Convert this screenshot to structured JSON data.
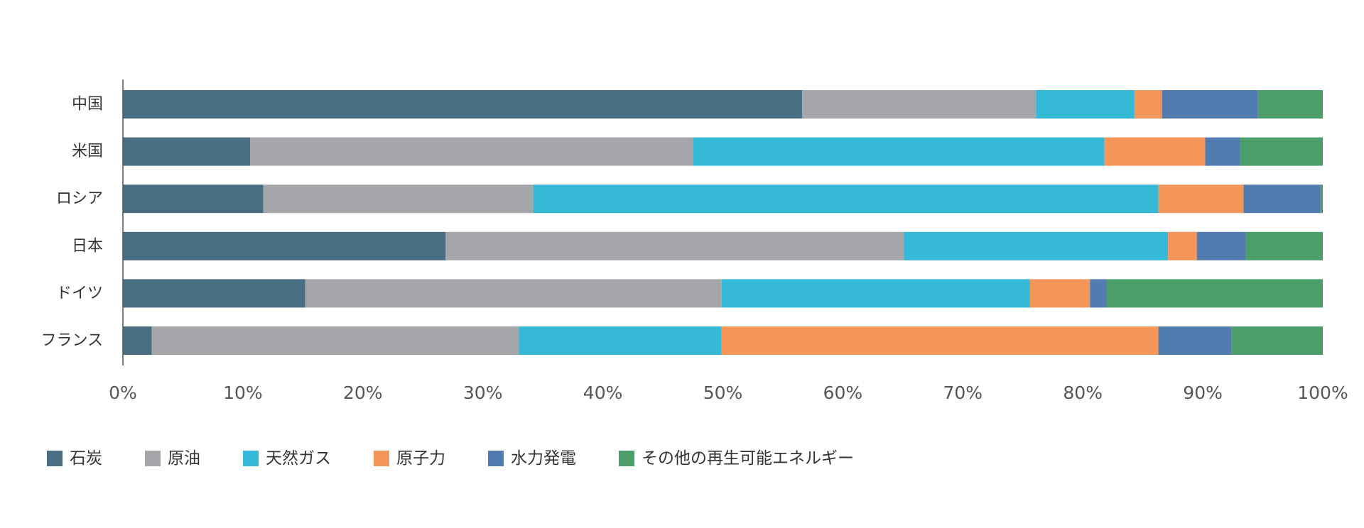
{
  "chart_data": {
    "type": "bar",
    "orientation": "horizontal",
    "stacked": true,
    "title": "",
    "xlabel": "",
    "ylabel": "",
    "xlim": [
      0,
      100
    ],
    "x_ticks": [
      "0%",
      "10%",
      "20%",
      "30%",
      "40%",
      "50%",
      "60%",
      "70%",
      "80%",
      "90%",
      "100%"
    ],
    "categories": [
      "中国",
      "米国",
      "ロシア",
      "日本",
      "ドイツ",
      "フランス"
    ],
    "series": [
      {
        "name": "石炭",
        "color": "#486e84",
        "values": [
          56.6,
          10.6,
          11.7,
          26.9,
          15.2,
          2.4
        ]
      },
      {
        "name": "原油",
        "color": "#a5a6a9",
        "values": [
          19.5,
          36.9,
          22.5,
          38.2,
          34.7,
          30.6
        ]
      },
      {
        "name": "天然ガス",
        "color": "#34b9d6",
        "values": [
          8.2,
          34.3,
          52.1,
          22.0,
          25.7,
          16.9
        ]
      },
      {
        "name": "原子力",
        "color": "#f4955a",
        "values": [
          2.3,
          8.4,
          7.1,
          2.4,
          5.0,
          36.4
        ]
      },
      {
        "name": "水力発電",
        "color": "#527cb0",
        "values": [
          8.0,
          2.9,
          6.4,
          4.1,
          1.4,
          6.1
        ]
      },
      {
        "name": "その他の再生可能エネルギー",
        "color": "#4c9e6a",
        "values": [
          5.4,
          6.9,
          0.2,
          6.4,
          18.0,
          7.6
        ]
      }
    ],
    "grid": false,
    "legend_position": "bottom-left"
  }
}
